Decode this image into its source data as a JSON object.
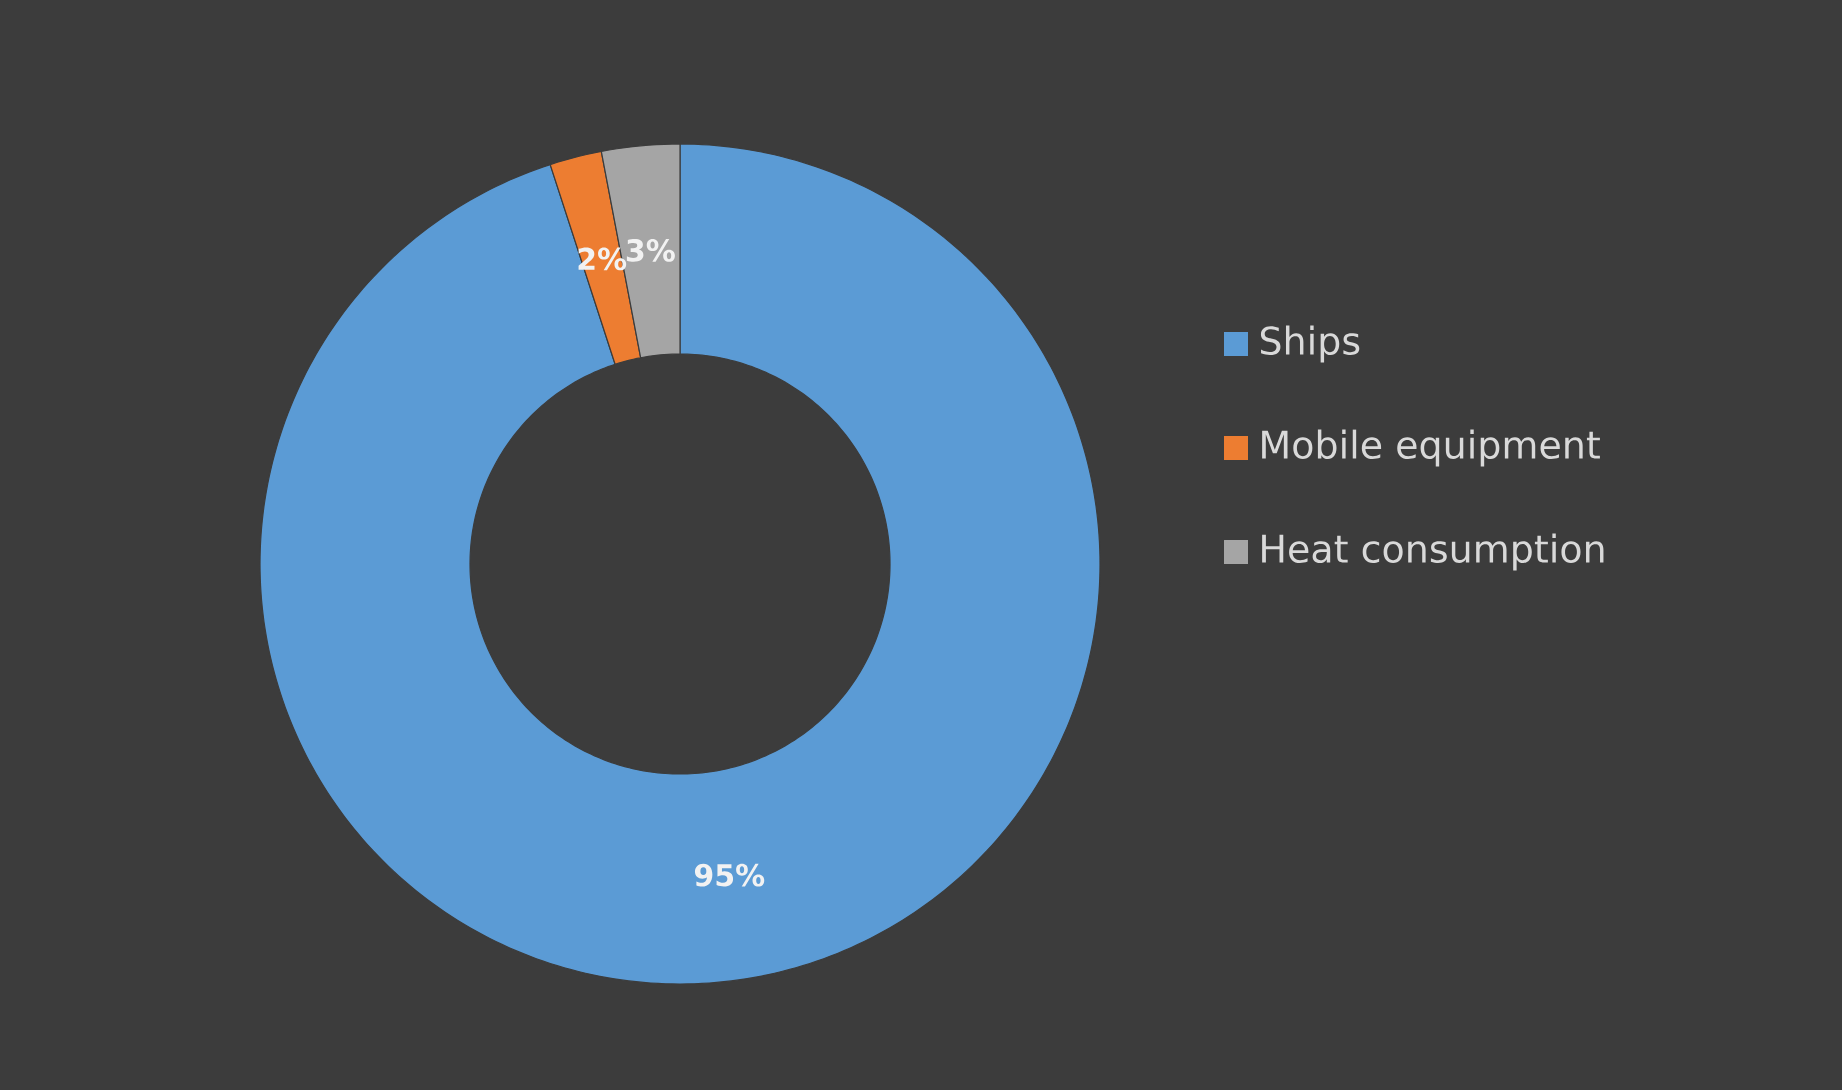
{
  "chart_data": {
    "type": "donut",
    "categories": [
      "Ships",
      "Mobile equipment",
      "Heat consumption"
    ],
    "values": [
      95,
      2,
      3
    ],
    "colors": [
      "#5b9bd5",
      "#ed7d31",
      "#a5a5a5"
    ],
    "value_labels": [
      "95%",
      "2%",
      "3%"
    ],
    "legend": "right"
  }
}
